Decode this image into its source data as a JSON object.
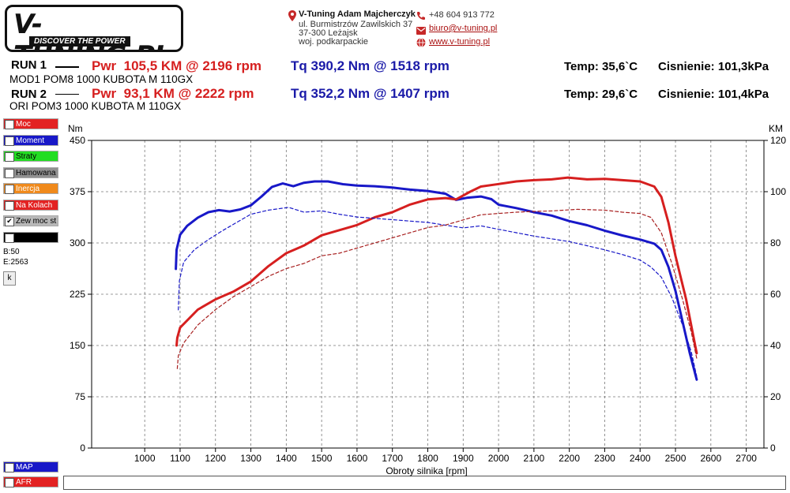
{
  "header": {
    "logo_text": "V-TUNING.PL",
    "logo_slogan": "DISCOVER THE POWER",
    "company": "V-Tuning Adam Majcherczyk",
    "address1": "ul. Burmistrzów Zawilskich 37",
    "address2": "37-300 Leżajsk",
    "address3": "woj. podkarpackie",
    "phone": "+48 604 913 772",
    "email": "biuro@v-tuning.pl",
    "website": "www.v-tuning.pl"
  },
  "runs": [
    {
      "label": "RUN 1",
      "pwr": "Pwr  105,5 KM @ 2196 rpm",
      "tq": "Tq 390,2 Nm @ 1518 rpm",
      "temp": "Temp: 35,6`C",
      "pressure": "Cisnienie: 101,3kPa",
      "desc": "MOD1 POM8 1000 KUBOTA M 110GX"
    },
    {
      "label": "RUN 2",
      "pwr": "Pwr  93,1 KM @ 2222 rpm",
      "tq": "Tq 352,2 Nm @ 1407 rpm",
      "temp": "Temp: 29,6`C",
      "pressure": "Cisnienie: 101,4kPa",
      "desc": "ORI POM3 1000 KUBOTA M 110GX"
    }
  ],
  "legend_items": [
    {
      "label": "Moc",
      "color": "#e32222",
      "checked": true
    },
    {
      "label": "Moment obr.",
      "color": "#1818c8",
      "checked": true
    },
    {
      "label": "Straty",
      "color": "#22dd22",
      "checked": false
    },
    {
      "label": "Hamowana",
      "color": "#909090",
      "checked": false
    },
    {
      "label": "Inercja",
      "color": "#f08a1c",
      "checked": false
    },
    {
      "label": "Na Kolach",
      "color": "#e32222",
      "checked": false
    },
    {
      "label": "Zew moc st",
      "color": "#b8b8b8",
      "checked": true
    },
    {
      "label": "",
      "color": "#000000",
      "checked": false
    }
  ],
  "bottom_legend": [
    {
      "label": "MAP",
      "color": "#1818c8"
    },
    {
      "label": "AFR",
      "color": "#e32222"
    }
  ],
  "side_info": {
    "b": "B:50",
    "e": "E:2563",
    "k": "k"
  },
  "chart_data": {
    "type": "line",
    "xlabel": "Obroty silnika [rpm]",
    "ylabel_left": "Nm",
    "ylabel_right": "KM",
    "xlim": [
      850,
      2750
    ],
    "ylim_left": [
      0,
      450
    ],
    "ylim_right": [
      0,
      120
    ],
    "x_ticks": [
      1000,
      1100,
      1200,
      1300,
      1400,
      1500,
      1600,
      1700,
      1800,
      1900,
      2000,
      2100,
      2200,
      2300,
      2400,
      2500,
      2600,
      2700
    ],
    "y_ticks_left": [
      0,
      75,
      150,
      225,
      300,
      375,
      450
    ],
    "y_ticks_right": [
      0,
      20,
      40,
      60,
      80,
      100,
      120
    ],
    "grid": true,
    "series": [
      {
        "name": "Tq RUN 1",
        "axis": "left",
        "color": "#1818c8",
        "style": "solid",
        "points": [
          [
            1088,
            262
          ],
          [
            1090,
            290
          ],
          [
            1100,
            312
          ],
          [
            1120,
            325
          ],
          [
            1150,
            337
          ],
          [
            1180,
            345
          ],
          [
            1210,
            348
          ],
          [
            1240,
            346
          ],
          [
            1270,
            349
          ],
          [
            1300,
            355
          ],
          [
            1330,
            368
          ],
          [
            1360,
            382
          ],
          [
            1390,
            387
          ],
          [
            1420,
            383
          ],
          [
            1450,
            388
          ],
          [
            1480,
            390
          ],
          [
            1518,
            390
          ],
          [
            1560,
            386
          ],
          [
            1600,
            384
          ],
          [
            1650,
            383
          ],
          [
            1700,
            381
          ],
          [
            1750,
            378
          ],
          [
            1800,
            376
          ],
          [
            1850,
            372
          ],
          [
            1880,
            363
          ],
          [
            1910,
            366
          ],
          [
            1950,
            368
          ],
          [
            1980,
            364
          ],
          [
            2000,
            356
          ],
          [
            2050,
            351
          ],
          [
            2100,
            345
          ],
          [
            2150,
            340
          ],
          [
            2200,
            332
          ],
          [
            2250,
            326
          ],
          [
            2300,
            318
          ],
          [
            2350,
            311
          ],
          [
            2400,
            305
          ],
          [
            2440,
            299
          ],
          [
            2460,
            290
          ],
          [
            2480,
            265
          ],
          [
            2500,
            230
          ],
          [
            2520,
            185
          ],
          [
            2540,
            140
          ],
          [
            2560,
            100
          ]
        ]
      },
      {
        "name": "Pwr RUN 1",
        "axis": "right",
        "color": "#d61f1f",
        "style": "solid",
        "points": [
          [
            1090,
            40
          ],
          [
            1092,
            43
          ],
          [
            1100,
            47
          ],
          [
            1150,
            54
          ],
          [
            1200,
            58
          ],
          [
            1250,
            61
          ],
          [
            1300,
            65
          ],
          [
            1350,
            71
          ],
          [
            1400,
            76
          ],
          [
            1450,
            79
          ],
          [
            1500,
            83
          ],
          [
            1550,
            85
          ],
          [
            1600,
            87
          ],
          [
            1650,
            90
          ],
          [
            1700,
            92
          ],
          [
            1750,
            95
          ],
          [
            1800,
            97
          ],
          [
            1850,
            97.5
          ],
          [
            1880,
            97
          ],
          [
            1920,
            100
          ],
          [
            1950,
            102
          ],
          [
            2000,
            103
          ],
          [
            2050,
            104
          ],
          [
            2100,
            104.5
          ],
          [
            2150,
            104.8
          ],
          [
            2196,
            105.5
          ],
          [
            2250,
            104.8
          ],
          [
            2300,
            105
          ],
          [
            2350,
            104.5
          ],
          [
            2400,
            104
          ],
          [
            2440,
            102
          ],
          [
            2460,
            98
          ],
          [
            2480,
            88
          ],
          [
            2500,
            75
          ],
          [
            2530,
            58
          ],
          [
            2560,
            37
          ]
        ]
      },
      {
        "name": "Tq RUN 2",
        "axis": "left",
        "color": "#1818c8",
        "style": "dashed",
        "points": [
          [
            1095,
            202
          ],
          [
            1098,
            245
          ],
          [
            1110,
            272
          ],
          [
            1140,
            290
          ],
          [
            1180,
            305
          ],
          [
            1220,
            318
          ],
          [
            1260,
            330
          ],
          [
            1300,
            342
          ],
          [
            1350,
            348
          ],
          [
            1407,
            352
          ],
          [
            1450,
            345
          ],
          [
            1500,
            347
          ],
          [
            1550,
            342
          ],
          [
            1600,
            338
          ],
          [
            1650,
            336
          ],
          [
            1700,
            334
          ],
          [
            1750,
            332
          ],
          [
            1800,
            330
          ],
          [
            1850,
            326
          ],
          [
            1900,
            322
          ],
          [
            1950,
            325
          ],
          [
            2000,
            320
          ],
          [
            2050,
            315
          ],
          [
            2100,
            310
          ],
          [
            2150,
            306
          ],
          [
            2200,
            302
          ],
          [
            2250,
            296
          ],
          [
            2300,
            290
          ],
          [
            2350,
            283
          ],
          [
            2400,
            275
          ],
          [
            2430,
            265
          ],
          [
            2460,
            250
          ],
          [
            2490,
            220
          ],
          [
            2520,
            180
          ],
          [
            2545,
            140
          ],
          [
            2560,
            105
          ]
        ]
      },
      {
        "name": "Pwr RUN 2",
        "axis": "right",
        "color": "#a82020",
        "style": "dashed",
        "points": [
          [
            1092,
            31
          ],
          [
            1095,
            36
          ],
          [
            1110,
            41
          ],
          [
            1150,
            48
          ],
          [
            1200,
            54
          ],
          [
            1250,
            59
          ],
          [
            1300,
            63
          ],
          [
            1350,
            67
          ],
          [
            1400,
            70
          ],
          [
            1450,
            72
          ],
          [
            1500,
            75
          ],
          [
            1550,
            76
          ],
          [
            1600,
            78
          ],
          [
            1650,
            80
          ],
          [
            1700,
            82
          ],
          [
            1750,
            84
          ],
          [
            1800,
            86
          ],
          [
            1850,
            87
          ],
          [
            1900,
            89
          ],
          [
            1950,
            91
          ],
          [
            2000,
            91.5
          ],
          [
            2050,
            92
          ],
          [
            2100,
            92.3
          ],
          [
            2150,
            92.5
          ],
          [
            2222,
            93.1
          ],
          [
            2300,
            92.8
          ],
          [
            2350,
            92
          ],
          [
            2400,
            91.5
          ],
          [
            2430,
            90
          ],
          [
            2460,
            84
          ],
          [
            2490,
            72
          ],
          [
            2520,
            58
          ],
          [
            2545,
            45
          ],
          [
            2560,
            35
          ]
        ]
      }
    ]
  }
}
